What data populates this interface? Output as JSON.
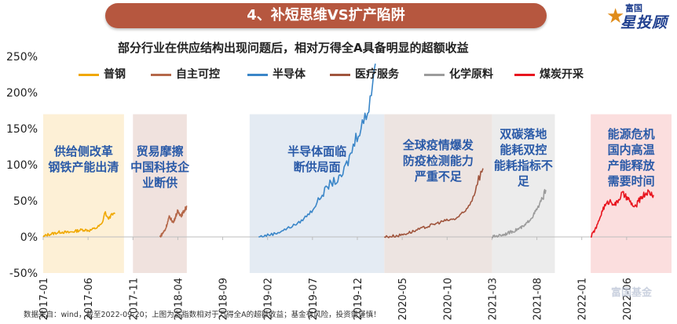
{
  "banner": {
    "title": "4、补短思维VS扩产陷阱"
  },
  "logo": {
    "small": "富国",
    "big": "星投顾",
    "star": "★"
  },
  "watermark": "富国基金",
  "footnote": "数据来自：wind，截至2022-09-20；上图为各指数相对于万得全A的超额收益；基金有风险，投资需谨慎！",
  "colors": {
    "steel": "#f0a800",
    "auto": "#b5684a",
    "semi": "#3a86c8",
    "medical": "#a0553d",
    "chem": "#9c9c9c",
    "coal": "#e8141e"
  },
  "chart_data": {
    "type": "line",
    "title": "部分行业在供应结构出现问题后，相对万得全A具备明显的超额收益",
    "xlabel": "",
    "ylabel": "",
    "ylim": [
      -50,
      250
    ],
    "yticks": [
      "250%",
      "200%",
      "150%",
      "100%",
      "50%",
      "0%",
      "-50%"
    ],
    "ytick_values": [
      250,
      200,
      150,
      100,
      50,
      0,
      -50
    ],
    "xlim": [
      "2017-01",
      "2022-11"
    ],
    "xticks": [
      "2017-01",
      "2017-06",
      "2017-11",
      "2018-04",
      "2018-09",
      "2019-02",
      "2019-07",
      "2019-12",
      "2020-05",
      "2020-10",
      "2021-03",
      "2021-08",
      "2022-01",
      "2022-06"
    ],
    "series": [
      {
        "name": "普钢",
        "color_key": "steel",
        "start": "2017-01",
        "end": "2017-09",
        "points": [
          [
            0,
            0
          ],
          [
            0.06,
            3
          ],
          [
            0.15,
            5
          ],
          [
            0.25,
            7
          ],
          [
            0.35,
            6
          ],
          [
            0.45,
            8
          ],
          [
            0.55,
            10
          ],
          [
            0.65,
            9
          ],
          [
            0.75,
            13
          ],
          [
            0.82,
            18
          ],
          [
            0.86,
            35
          ],
          [
            0.9,
            25
          ],
          [
            0.95,
            30
          ],
          [
            1.0,
            32
          ]
        ],
        "period": {
          "start": "2017-01",
          "end": "2017-10",
          "fill": "#fdf0d6"
        },
        "annotation": [
          "供给侧改革",
          "钢铁产能出清"
        ]
      },
      {
        "name": "自主可控",
        "color_key": "auto",
        "start": "2018-02",
        "end": "2018-05",
        "points": [
          [
            0,
            0
          ],
          [
            0.2,
            10
          ],
          [
            0.35,
            28
          ],
          [
            0.5,
            20
          ],
          [
            0.65,
            35
          ],
          [
            0.8,
            30
          ],
          [
            1.0,
            42
          ]
        ],
        "period": {
          "start": "2017-11",
          "end": "2018-05",
          "fill": "#f0e2de"
        },
        "annotation": [
          "贸易摩擦",
          "中国科技企",
          "业断供"
        ]
      },
      {
        "name": "半导体",
        "color_key": "semi",
        "start": "2019-01",
        "end": "2020-02",
        "points": [
          [
            0,
            0
          ],
          [
            0.15,
            5
          ],
          [
            0.25,
            12
          ],
          [
            0.35,
            20
          ],
          [
            0.45,
            35
          ],
          [
            0.55,
            60
          ],
          [
            0.62,
            75
          ],
          [
            0.7,
            80
          ],
          [
            0.78,
            110
          ],
          [
            0.86,
            150
          ],
          [
            0.92,
            165
          ],
          [
            0.96,
            200
          ],
          [
            1.0,
            240
          ]
        ],
        "period": {
          "start": "2018-12",
          "end": "2020-03",
          "fill": "#e4ebf3"
        },
        "annotation": [
          "半导体面临",
          "断供局面"
        ]
      },
      {
        "name": "医疗服务",
        "color_key": "medical",
        "start": "2020-03",
        "end": "2021-02",
        "points": [
          [
            0,
            0
          ],
          [
            0.15,
            2
          ],
          [
            0.3,
            8
          ],
          [
            0.45,
            15
          ],
          [
            0.6,
            22
          ],
          [
            0.72,
            25
          ],
          [
            0.82,
            35
          ],
          [
            0.9,
            55
          ],
          [
            0.95,
            80
          ],
          [
            1.0,
            95
          ]
        ],
        "period": {
          "start": "2020-03",
          "end": "2021-03",
          "fill": "#ede4e1"
        },
        "annotation": [
          "全球疫情爆发",
          "防疫检测能力",
          "严重不足"
        ]
      },
      {
        "name": "化学原料",
        "color_key": "chem",
        "start": "2021-03",
        "end": "2021-09",
        "points": [
          [
            0,
            0
          ],
          [
            0.2,
            3
          ],
          [
            0.4,
            8
          ],
          [
            0.6,
            15
          ],
          [
            0.75,
            28
          ],
          [
            0.85,
            40
          ],
          [
            0.93,
            52
          ],
          [
            1.0,
            65
          ]
        ],
        "period": {
          "start": "2021-03",
          "end": "2021-10",
          "fill": "#ececec"
        },
        "annotation": [
          "双碳落地",
          "能耗双控",
          "能耗指标不",
          "足"
        ]
      },
      {
        "name": "煤炭开采",
        "color_key": "coal",
        "start": "2022-02",
        "end": "2022-09",
        "points": [
          [
            0,
            0
          ],
          [
            0.1,
            15
          ],
          [
            0.2,
            40
          ],
          [
            0.3,
            50
          ],
          [
            0.4,
            45
          ],
          [
            0.5,
            60
          ],
          [
            0.6,
            52
          ],
          [
            0.7,
            40
          ],
          [
            0.8,
            55
          ],
          [
            0.9,
            62
          ],
          [
            1.0,
            58
          ]
        ],
        "period": {
          "start": "2022-02",
          "end": "2022-11",
          "fill": "#fbdede"
        },
        "annotation": [
          "能源危机",
          "国内高温",
          "产能释放",
          "需要时间"
        ]
      }
    ]
  }
}
